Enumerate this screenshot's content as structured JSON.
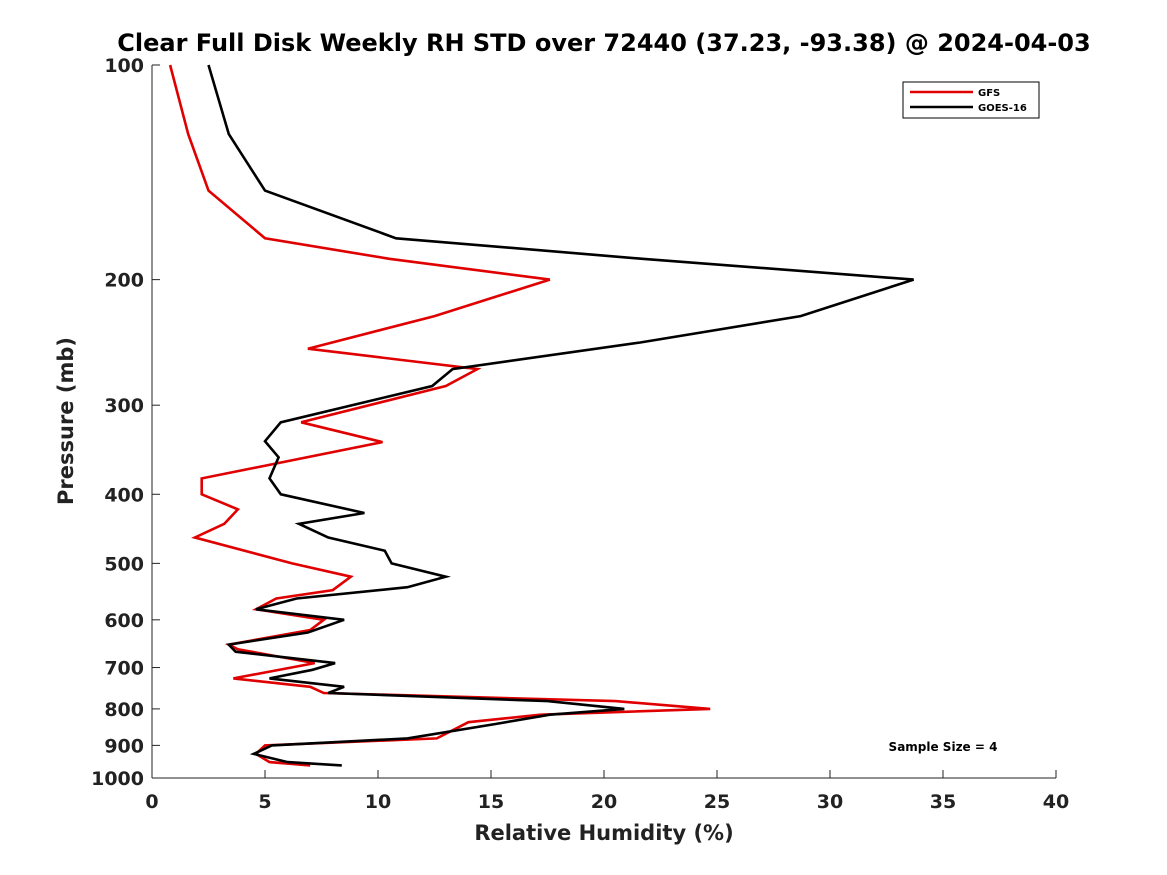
{
  "chart_data": {
    "type": "line",
    "title": "Clear Full Disk Weekly RH STD over 72440 (37.23, -93.38) @ 2024-04-03",
    "xlabel": "Relative Humidity (%)",
    "ylabel": "Pressure (mb)",
    "xlim": [
      0,
      40
    ],
    "ylim": [
      100,
      1000
    ],
    "yscale": "log",
    "y_reversed": true,
    "grid": false,
    "legend_position": "top-right",
    "x_ticks": [
      0,
      5,
      10,
      15,
      20,
      25,
      30,
      35,
      40
    ],
    "y_ticks": [
      100,
      200,
      300,
      400,
      500,
      600,
      700,
      800,
      900,
      1000
    ],
    "annotation": "Sample Size = 4",
    "series": [
      {
        "name": "GFS",
        "color": "#e00000",
        "points": [
          [
            0.8,
            100
          ],
          [
            1.6,
            125
          ],
          [
            2.5,
            150
          ],
          [
            5.0,
            175
          ],
          [
            10.5,
            187
          ],
          [
            17.6,
            200
          ],
          [
            12.5,
            225
          ],
          [
            6.9,
            250
          ],
          [
            14.4,
            267
          ],
          [
            13.0,
            282
          ],
          [
            6.6,
            317
          ],
          [
            10.2,
            338
          ],
          [
            2.2,
            380
          ],
          [
            2.2,
            400
          ],
          [
            3.8,
            420
          ],
          [
            3.2,
            440
          ],
          [
            1.9,
            460
          ],
          [
            6.2,
            500
          ],
          [
            8.8,
            522
          ],
          [
            8.0,
            545
          ],
          [
            5.5,
            560
          ],
          [
            4.6,
            580
          ],
          [
            7.6,
            600
          ],
          [
            7.0,
            620
          ],
          [
            3.4,
            650
          ],
          [
            3.8,
            660
          ],
          [
            7.2,
            690
          ],
          [
            3.6,
            725
          ],
          [
            7.0,
            745
          ],
          [
            7.6,
            760
          ],
          [
            20.5,
            780
          ],
          [
            24.7,
            800
          ],
          [
            17.2,
            815
          ],
          [
            14.0,
            835
          ],
          [
            12.6,
            880
          ],
          [
            5.0,
            900
          ],
          [
            4.6,
            925
          ],
          [
            5.2,
            950
          ],
          [
            7.0,
            960
          ]
        ]
      },
      {
        "name": "GOES-16",
        "color": "#000000",
        "points": [
          [
            2.5,
            100
          ],
          [
            3.4,
            125
          ],
          [
            5.0,
            150
          ],
          [
            10.8,
            175
          ],
          [
            21.7,
            187
          ],
          [
            33.7,
            200
          ],
          [
            28.7,
            225
          ],
          [
            21.6,
            245
          ],
          [
            13.3,
            267
          ],
          [
            12.4,
            282
          ],
          [
            5.7,
            317
          ],
          [
            5.0,
            337
          ],
          [
            5.6,
            355
          ],
          [
            5.2,
            380
          ],
          [
            5.7,
            400
          ],
          [
            9.4,
            425
          ],
          [
            6.5,
            440
          ],
          [
            7.8,
            460
          ],
          [
            10.3,
            480
          ],
          [
            10.6,
            500
          ],
          [
            13.0,
            522
          ],
          [
            11.3,
            540
          ],
          [
            6.4,
            560
          ],
          [
            4.6,
            580
          ],
          [
            8.5,
            600
          ],
          [
            6.9,
            625
          ],
          [
            3.4,
            650
          ],
          [
            3.7,
            665
          ],
          [
            8.1,
            690
          ],
          [
            7.1,
            705
          ],
          [
            5.2,
            725
          ],
          [
            8.5,
            745
          ],
          [
            7.8,
            760
          ],
          [
            17.5,
            780
          ],
          [
            20.9,
            800
          ],
          [
            17.6,
            815
          ],
          [
            15.2,
            840
          ],
          [
            11.3,
            880
          ],
          [
            5.3,
            900
          ],
          [
            4.5,
            925
          ],
          [
            6.0,
            950
          ],
          [
            8.4,
            960
          ]
        ]
      }
    ]
  }
}
